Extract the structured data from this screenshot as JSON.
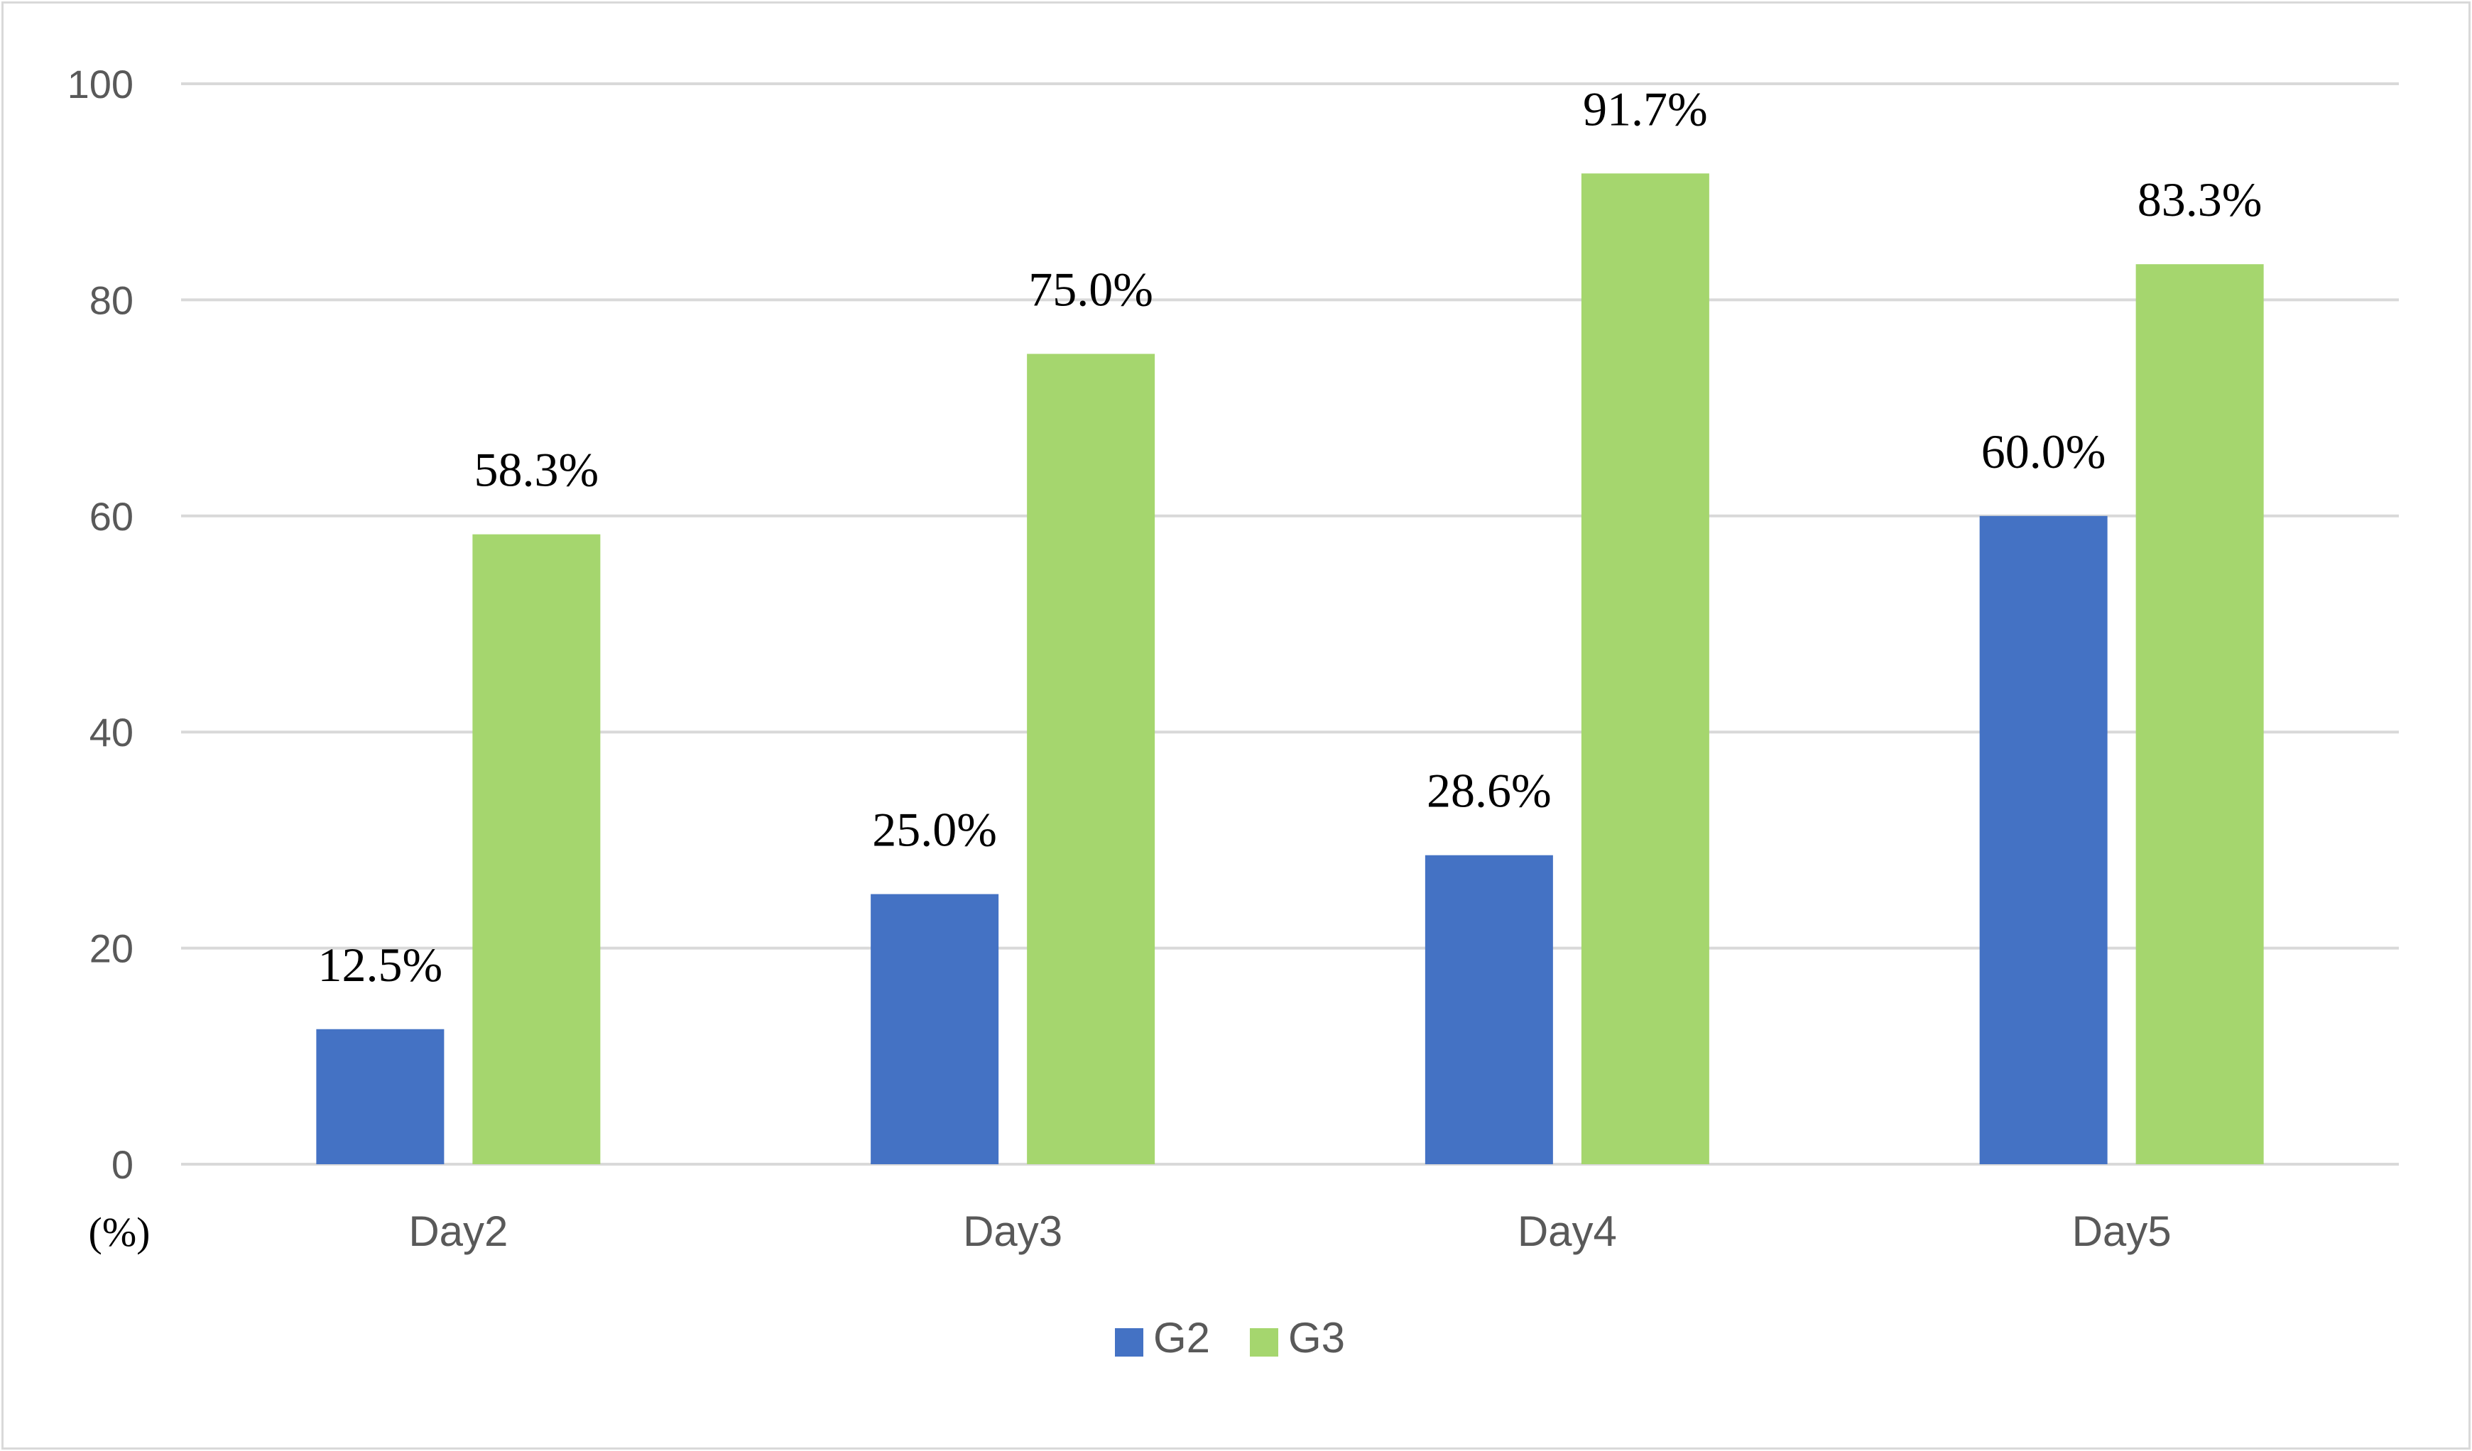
{
  "chart_data": {
    "type": "bar",
    "categories": [
      "Day2",
      "Day3",
      "Day4",
      "Day5"
    ],
    "series": [
      {
        "name": "G2",
        "values": [
          12.5,
          25.0,
          28.6,
          60.0
        ],
        "labels": [
          "12.5%",
          "25.0%",
          "28.6%",
          "60.0%"
        ],
        "color": "#4472c4"
      },
      {
        "name": "G3",
        "values": [
          58.3,
          75.0,
          91.7,
          83.3
        ],
        "labels": [
          "58.3%",
          "75.0%",
          "91.7%",
          "83.3%"
        ],
        "color": "#a5d66e"
      }
    ],
    "y_unit_label": "(%)",
    "ylim": [
      0,
      100
    ],
    "yticks": [
      0,
      20,
      40,
      60,
      80,
      100
    ],
    "grid": true,
    "gridline_color": "#d9d9d9",
    "legend_position": "bottom-center"
  }
}
